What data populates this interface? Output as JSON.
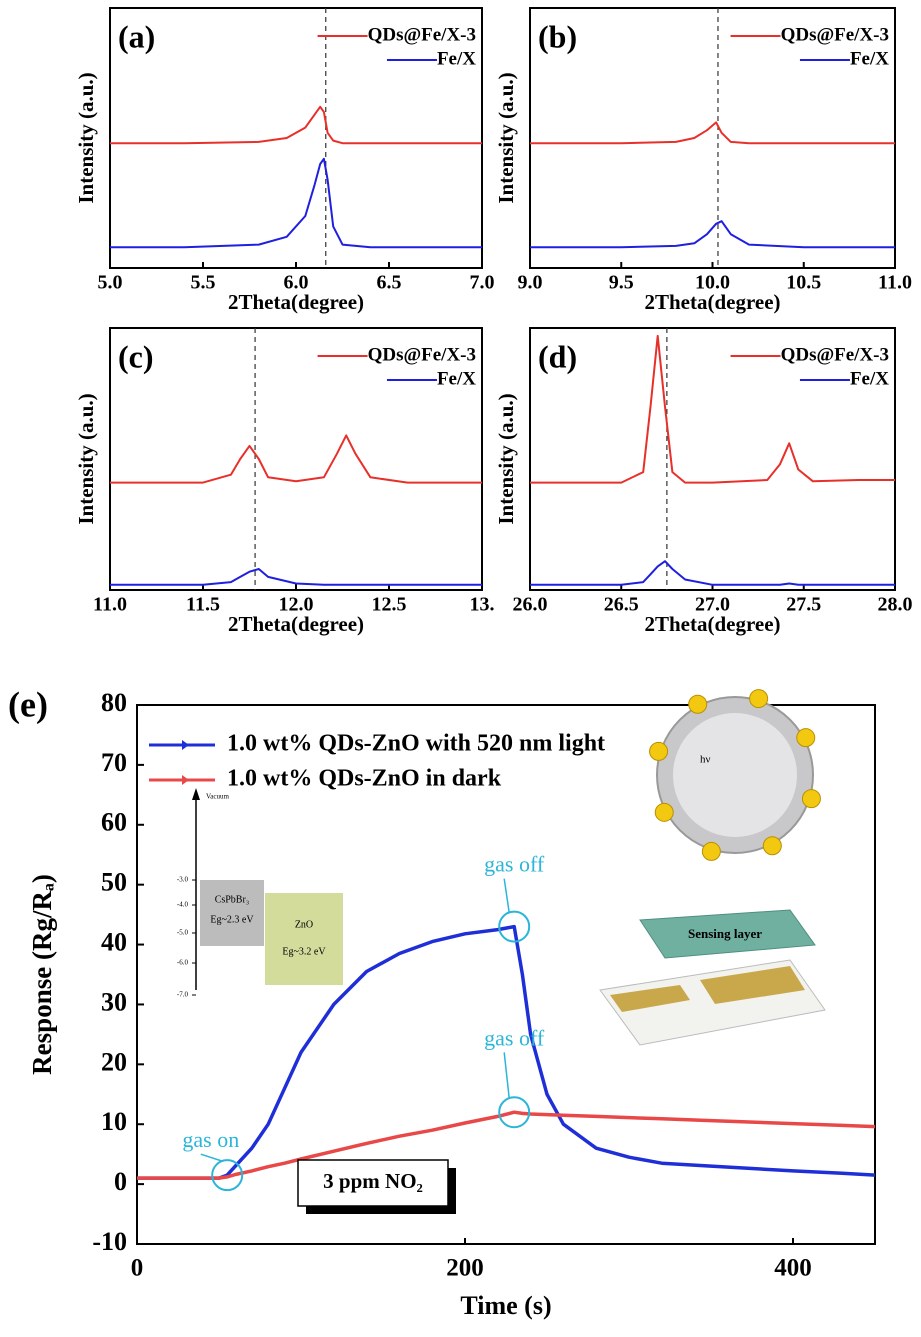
{
  "chart_data": [
    {
      "type": "line",
      "panel_label": "(a)",
      "xlabel": "2Theta(degree)",
      "ylabel": "Intensity (a.u.)",
      "xlim": [
        5,
        7
      ],
      "xticks": [
        {
          "value": 5,
          "label": "5.0"
        },
        5.5,
        {
          "value": 6,
          "label": "6.0"
        },
        6.5,
        {
          "value": 7,
          "label": "7.0"
        }
      ],
      "ylim": [
        0,
        100
      ],
      "vline": 6.16,
      "legend": "upper right",
      "x": [
        5.0,
        5.4,
        5.8,
        5.95,
        6.05,
        6.1,
        6.13,
        6.15,
        6.17,
        6.2,
        6.25,
        6.4,
        7.0
      ],
      "series": [
        {
          "name": "QDs@Fe/X-3",
          "color": "#e8302a",
          "values": [
            48,
            48,
            48.5,
            50,
            54,
            59,
            62,
            60,
            52,
            49,
            48,
            48,
            48
          ]
        },
        {
          "name": "Fe/X",
          "color": "#1f1fe0",
          "values": [
            8,
            8,
            9,
            12,
            20,
            32,
            40,
            42,
            34,
            16,
            9,
            8,
            8
          ]
        }
      ]
    },
    {
      "type": "line",
      "panel_label": "(b)",
      "xlabel": "2Theta(degree)",
      "ylabel": "Intensity (a.u.)",
      "xlim": [
        9,
        11
      ],
      "xticks": [
        {
          "value": 9,
          "label": "9.0"
        },
        9.5,
        {
          "value": 10,
          "label": "10.0"
        },
        10.5,
        {
          "value": 11,
          "label": "11.0"
        }
      ],
      "ylim": [
        0,
        100
      ],
      "vline": 10.03,
      "legend": "upper right",
      "x": [
        9.0,
        9.5,
        9.8,
        9.9,
        9.97,
        10.02,
        10.05,
        10.1,
        10.2,
        10.5,
        11.0
      ],
      "series": [
        {
          "name": "QDs@Fe/X-3",
          "color": "#e8302a",
          "values": [
            48,
            48,
            48.5,
            50,
            53,
            56,
            52,
            48.5,
            48,
            48,
            48
          ]
        },
        {
          "name": "Fe/X",
          "color": "#1f1fe0",
          "values": [
            8,
            8,
            8.5,
            9.5,
            13,
            17,
            18,
            13,
            9,
            8,
            8
          ]
        }
      ]
    },
    {
      "type": "line",
      "panel_label": "(c)",
      "xlabel": "2Theta(degree)",
      "ylabel": "Intensity (a.u.)",
      "xlim": [
        11,
        13
      ],
      "xticks": [
        {
          "value": 11,
          "label": "11.0"
        },
        11.5,
        {
          "value": 12,
          "label": "12.0"
        },
        12.5,
        {
          "value": 13,
          "label": "13."
        }
      ],
      "ylim": [
        0,
        100
      ],
      "vline": 11.78,
      "legend": "upper right",
      "x": [
        11.0,
        11.5,
        11.65,
        11.7,
        11.75,
        11.8,
        11.85,
        12.0,
        12.15,
        12.22,
        12.27,
        12.32,
        12.4,
        12.6,
        13.0
      ],
      "series": [
        {
          "name": "QDs@Fe/X-3",
          "color": "#e8302a",
          "values": [
            41,
            41,
            44,
            50,
            55,
            50,
            43,
            41.5,
            43,
            52,
            59,
            52,
            43,
            41,
            41
          ]
        },
        {
          "name": "Fe/X",
          "color": "#1f1fe0",
          "values": [
            2,
            2,
            3,
            5,
            7,
            8,
            5,
            2.5,
            2,
            2,
            2,
            2,
            2,
            2,
            2
          ]
        }
      ]
    },
    {
      "type": "line",
      "panel_label": "(d)",
      "xlabel": "2Theta(degree)",
      "ylabel": "Intensity (a.u.)",
      "xlim": [
        26,
        28
      ],
      "xticks": [
        {
          "value": 26,
          "label": "26.0"
        },
        26.5,
        {
          "value": 27,
          "label": "27.0"
        },
        27.5,
        {
          "value": 28,
          "label": "28.0"
        }
      ],
      "ylim": [
        0,
        100
      ],
      "vline": 26.75,
      "legend": "upper right",
      "x": [
        26.0,
        26.5,
        26.62,
        26.66,
        26.7,
        26.74,
        26.78,
        26.85,
        27.0,
        27.3,
        27.37,
        27.42,
        27.47,
        27.55,
        27.8,
        28.0
      ],
      "series": [
        {
          "name": "QDs@Fe/X-3",
          "color": "#e8302a",
          "values": [
            41,
            41,
            45,
            70,
            97,
            70,
            45,
            41,
            41,
            42,
            48,
            56,
            46,
            41.5,
            42,
            42
          ]
        },
        {
          "name": "Fe/X",
          "color": "#1f1fe0",
          "values": [
            2,
            2,
            3,
            6,
            9,
            11,
            8,
            4,
            2,
            2,
            2,
            2.5,
            2,
            2,
            2,
            2
          ]
        }
      ]
    },
    {
      "type": "line",
      "panel_label": "(e)",
      "xlabel": "Time (s)",
      "ylabel": "Response (Rg/Rₐ)",
      "xlim": [
        0,
        450
      ],
      "xticks": [
        0,
        200,
        400
      ],
      "ylim": [
        -10,
        80
      ],
      "yticks": [
        -10,
        0,
        10,
        20,
        30,
        40,
        50,
        60,
        70,
        80
      ],
      "legend": "upper left",
      "x": [
        0,
        50,
        55,
        60,
        70,
        80,
        90,
        100,
        120,
        140,
        160,
        180,
        200,
        220,
        230,
        235,
        240,
        250,
        260,
        280,
        300,
        320,
        350,
        400,
        430,
        450
      ],
      "series": [
        {
          "name": "1.0 wt% QDs-ZnO with 520 nm light",
          "color": "#1f2fd8",
          "values": [
            1,
            1,
            1.5,
            3,
            6,
            10,
            16,
            22,
            30,
            35.5,
            38.5,
            40.5,
            41.8,
            42.5,
            43,
            35,
            25,
            15,
            10,
            6,
            4.5,
            3.5,
            3,
            2.2,
            1.8,
            1.5
          ]
        },
        {
          "name": "1.0 wt% QDs-ZnO in dark",
          "color": "#e84848",
          "values": [
            1,
            1,
            1.2,
            1.6,
            2.2,
            2.9,
            3.5,
            4.2,
            5.5,
            6.8,
            8,
            9,
            10.2,
            11.3,
            12,
            11.8,
            11.7,
            11.6,
            11.5,
            11.3,
            11.1,
            10.9,
            10.6,
            10.1,
            9.8,
            9.6
          ]
        }
      ],
      "annotations": [
        "gas on",
        "gas off",
        "gas off"
      ],
      "condition": "3 ppm NO₂",
      "insets": {
        "energy_diagram": {
          "axis_label": "Vacuum",
          "levels": [
            "-3.0",
            "-4.0",
            "-5.0",
            "-6.0",
            "-7.0"
          ],
          "materials": [
            {
              "name": "CsPbBr₃",
              "gap": "Eg~2.3 eV"
            },
            {
              "name": "ZnO",
              "gap": "Eg~3.2 eV"
            }
          ]
        },
        "sensor_diagram": {
          "layer": "Sensing layer",
          "light": "hν"
        }
      }
    }
  ]
}
